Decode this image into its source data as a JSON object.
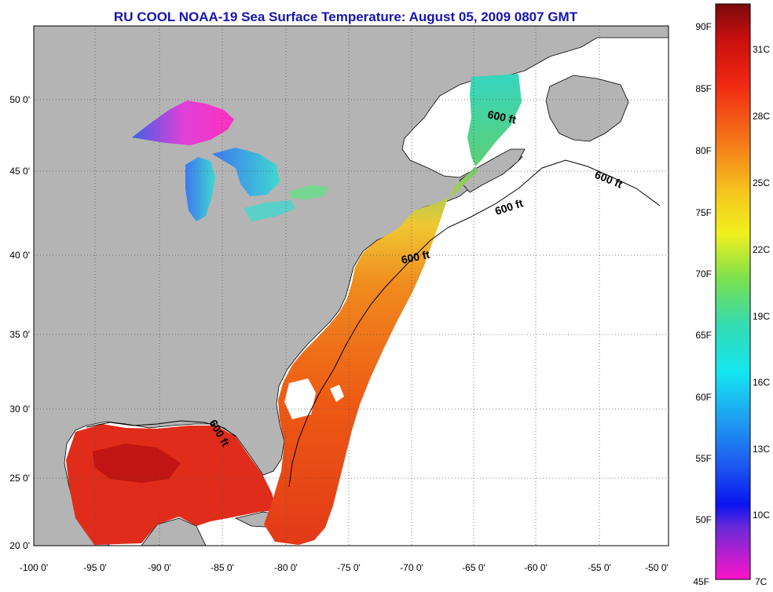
{
  "title": "RU COOL  NOAA-19  Sea Surface Temperature:  August 05, 2009 0807 GMT",
  "x_ticks": [
    "-100 0'",
    "-95 0'",
    "-90 0'",
    "-85 0'",
    "-80 0'",
    "-75 0'",
    "-70 0'",
    "-65 0'",
    "-60 0'",
    "-55 0'",
    "-50 0'"
  ],
  "y_ticks": [
    "50 0'",
    "45 0'",
    "40 0'",
    "35 0'",
    "30 0'",
    "25 0'",
    "20 0'"
  ],
  "contour_labels": [
    "600 ft",
    "600 ft",
    "600 ft",
    "600 ft",
    "600 ft"
  ],
  "colorbar": {
    "fahrenheit": [
      "90F",
      "85F",
      "80F",
      "75F",
      "70F",
      "65F",
      "60F",
      "55F",
      "50F",
      "45F"
    ],
    "celsius": [
      "31C",
      "28C",
      "25C",
      "22C",
      "19C",
      "16C",
      "13C",
      "10C",
      "7C"
    ]
  },
  "colors": {
    "title": "#1414b4",
    "land": "#b4b4b4",
    "no_data": "#ffffff",
    "warm": "#e8281c",
    "hot": "#c40f0f"
  }
}
